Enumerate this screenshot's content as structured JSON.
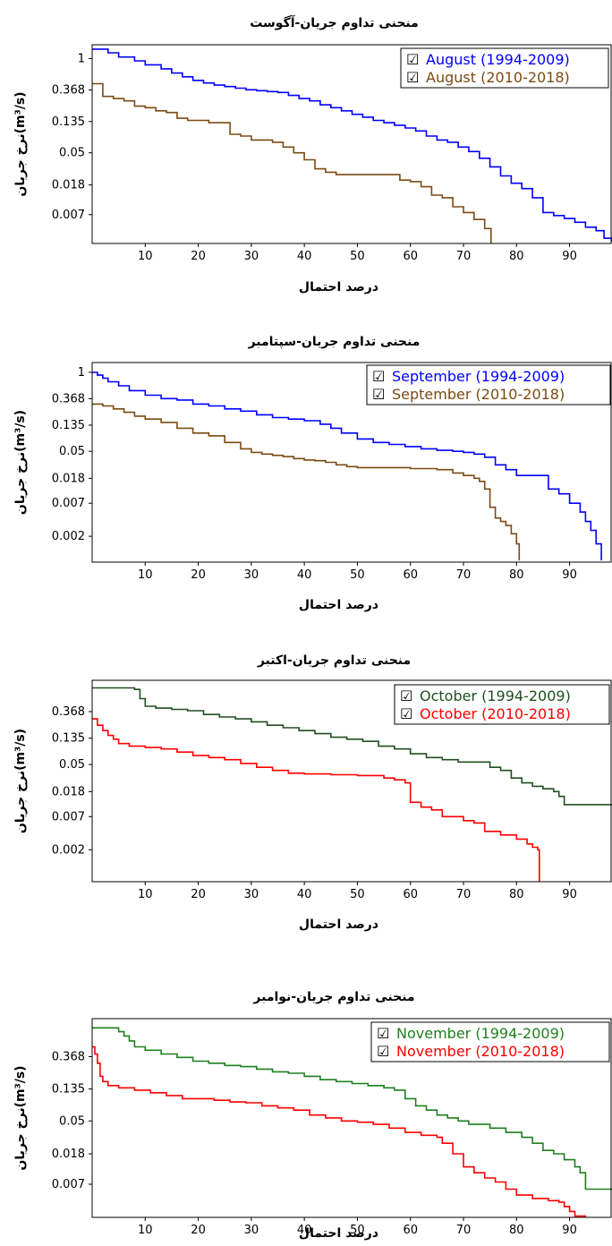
{
  "chart_data": [
    {
      "type": "line",
      "title": "منحنی تداوم جریان-آگوست",
      "xlabel": "درصد احتمال",
      "ylabel": "نرخ جریان(m³/s)",
      "y_scale": "log",
      "xlim": [
        0,
        98
      ],
      "ylim": [
        0.0028,
        1.55
      ],
      "x_ticks": [
        10,
        20,
        30,
        40,
        50,
        60,
        70,
        80,
        90
      ],
      "y_ticks": [
        1,
        0.368,
        0.135,
        0.05,
        0.018,
        0.007
      ],
      "y_tick_labels": [
        "1",
        "0.368",
        "0.135",
        "0.05",
        "0.018",
        "0.007"
      ],
      "legend_position": "top-right",
      "legend_checkbox_glyph": "☑",
      "series": [
        {
          "name": "August (1994-2009)",
          "color": "#0000ff",
          "x": [
            0,
            3,
            5,
            8,
            10,
            13,
            15,
            17,
            19,
            21,
            23,
            25,
            27,
            29,
            31,
            33,
            35,
            37,
            39,
            41,
            43,
            45,
            47,
            49,
            51,
            53,
            55,
            57,
            59,
            61,
            63,
            65,
            67,
            69,
            71,
            73,
            75,
            77,
            79,
            81,
            83,
            85,
            87,
            89,
            91,
            93,
            95,
            96.5,
            98
          ],
          "y": [
            1.35,
            1.2,
            1.05,
            0.93,
            0.82,
            0.72,
            0.63,
            0.56,
            0.5,
            0.46,
            0.43,
            0.41,
            0.39,
            0.37,
            0.36,
            0.35,
            0.34,
            0.31,
            0.28,
            0.26,
            0.23,
            0.21,
            0.19,
            0.17,
            0.155,
            0.14,
            0.13,
            0.12,
            0.11,
            0.1,
            0.085,
            0.075,
            0.07,
            0.06,
            0.052,
            0.042,
            0.032,
            0.024,
            0.019,
            0.016,
            0.012,
            0.0075,
            0.0068,
            0.0062,
            0.0055,
            0.0047,
            0.0042,
            0.0033,
            0.003
          ]
        },
        {
          "name": "August (2010-2018)",
          "color": "#7b4a12",
          "x": [
            0,
            2,
            4,
            6,
            8,
            10,
            12,
            14,
            16,
            18,
            20,
            22,
            24,
            26,
            28,
            30,
            32,
            34,
            36,
            38,
            40,
            42,
            44,
            46,
            48,
            50,
            52,
            54,
            56,
            58,
            60,
            62,
            64,
            66,
            68,
            70,
            72,
            74,
            75.2
          ],
          "y": [
            0.45,
            0.3,
            0.28,
            0.26,
            0.22,
            0.21,
            0.19,
            0.18,
            0.15,
            0.14,
            0.14,
            0.13,
            0.13,
            0.09,
            0.085,
            0.075,
            0.075,
            0.07,
            0.06,
            0.05,
            0.04,
            0.03,
            0.027,
            0.025,
            0.025,
            0.025,
            0.025,
            0.025,
            0.025,
            0.021,
            0.02,
            0.017,
            0.013,
            0.012,
            0.009,
            0.0075,
            0.006,
            0.0045,
            0.0028
          ]
        }
      ]
    },
    {
      "type": "line",
      "title": "منحنی تداوم جریان-سپتامبر",
      "xlabel": "درصد احتمال",
      "ylabel": "نرخ جریان(m³/s)",
      "y_scale": "log",
      "xlim": [
        0,
        98
      ],
      "ylim": [
        0.00075,
        1.45
      ],
      "x_ticks": [
        10,
        20,
        30,
        40,
        50,
        60,
        70,
        80,
        90
      ],
      "y_ticks": [
        1,
        0.368,
        0.135,
        0.05,
        0.018,
        0.007,
        0.002
      ],
      "y_tick_labels": [
        "1",
        "0.368",
        "0.135",
        "0.05",
        "0.018",
        "0.007",
        "0.002"
      ],
      "legend_position": "top-right",
      "legend_checkbox_glyph": "☑",
      "series": [
        {
          "name": "September (1994-2009)",
          "color": "#0000ff",
          "x": [
            0,
            1,
            2,
            3,
            5,
            7,
            10,
            13,
            16,
            19,
            22,
            25,
            28,
            31,
            34,
            37,
            40,
            43,
            45,
            47,
            50,
            53,
            56,
            59,
            62,
            65,
            68,
            70,
            72,
            74,
            76,
            78,
            80,
            82,
            84,
            86,
            88,
            90,
            92,
            93,
            94,
            95,
            96
          ],
          "y": [
            1.0,
            0.9,
            0.8,
            0.7,
            0.6,
            0.5,
            0.42,
            0.37,
            0.35,
            0.3,
            0.28,
            0.25,
            0.23,
            0.2,
            0.18,
            0.17,
            0.16,
            0.14,
            0.12,
            0.1,
            0.08,
            0.07,
            0.065,
            0.06,
            0.055,
            0.052,
            0.05,
            0.048,
            0.045,
            0.04,
            0.03,
            0.025,
            0.02,
            0.02,
            0.02,
            0.012,
            0.01,
            0.007,
            0.005,
            0.0035,
            0.0025,
            0.0015,
            0.0008
          ]
        },
        {
          "name": "September (2010-2018)",
          "color": "#7b4a12",
          "x": [
            0,
            2,
            4,
            6,
            8,
            10,
            13,
            16,
            19,
            22,
            25,
            28,
            30,
            32,
            34,
            36,
            38,
            40,
            42,
            44,
            46,
            48,
            50,
            55,
            60,
            65,
            68,
            70,
            72,
            73,
            74,
            75,
            76,
            77,
            78,
            79,
            80,
            80.5
          ],
          "y": [
            0.3,
            0.28,
            0.25,
            0.22,
            0.19,
            0.17,
            0.15,
            0.12,
            0.1,
            0.09,
            0.07,
            0.055,
            0.048,
            0.045,
            0.043,
            0.041,
            0.038,
            0.036,
            0.035,
            0.033,
            0.03,
            0.028,
            0.027,
            0.027,
            0.026,
            0.025,
            0.022,
            0.02,
            0.018,
            0.016,
            0.012,
            0.006,
            0.004,
            0.0035,
            0.003,
            0.0022,
            0.0015,
            0.0008
          ]
        }
      ]
    },
    {
      "type": "line",
      "title": "منحنی تداوم جریان-اکتبر",
      "xlabel": "درصد احتمال",
      "ylabel": "نرخ جریان(m³/s)",
      "y_scale": "log",
      "xlim": [
        0,
        98
      ],
      "ylim": [
        0.0006,
        1.2
      ],
      "x_ticks": [
        10,
        20,
        30,
        40,
        50,
        60,
        70,
        80,
        90
      ],
      "y_ticks": [
        0.368,
        0.135,
        0.05,
        0.018,
        0.007,
        0.002
      ],
      "y_tick_labels": [
        "0.368",
        "0.135",
        "0.05",
        "0.018",
        "0.007",
        "0.002"
      ],
      "legend_position": "top-right",
      "legend_checkbox_glyph": "☑",
      "series": [
        {
          "name": "October (1994-2009)",
          "color": "#1f4f1f",
          "x": [
            0,
            4,
            8,
            9,
            10,
            12,
            15,
            18,
            21,
            24,
            27,
            30,
            33,
            36,
            39,
            42,
            45,
            48,
            51,
            54,
            57,
            60,
            63,
            66,
            69,
            72,
            75,
            77,
            79,
            81,
            83,
            85,
            87,
            88,
            89,
            98
          ],
          "y": [
            0.9,
            0.9,
            0.85,
            0.6,
            0.45,
            0.42,
            0.4,
            0.38,
            0.33,
            0.3,
            0.28,
            0.25,
            0.22,
            0.2,
            0.18,
            0.16,
            0.14,
            0.13,
            0.12,
            0.1,
            0.09,
            0.075,
            0.065,
            0.06,
            0.055,
            0.055,
            0.045,
            0.04,
            0.03,
            0.025,
            0.022,
            0.02,
            0.018,
            0.015,
            0.011,
            0.011
          ]
        },
        {
          "name": "October (2010-2018)",
          "color": "#ff0000",
          "x": [
            0,
            1,
            2,
            3,
            4,
            5,
            7,
            10,
            13,
            16,
            19,
            22,
            25,
            28,
            31,
            34,
            37,
            40,
            45,
            50,
            55,
            57,
            59,
            60,
            62,
            64,
            66,
            68,
            70,
            72,
            74,
            77,
            80,
            82,
            83,
            84,
            84.3
          ],
          "y": [
            0.28,
            0.22,
            0.18,
            0.15,
            0.13,
            0.11,
            0.1,
            0.095,
            0.09,
            0.08,
            0.07,
            0.065,
            0.06,
            0.052,
            0.045,
            0.04,
            0.036,
            0.035,
            0.034,
            0.033,
            0.03,
            0.028,
            0.025,
            0.012,
            0.01,
            0.009,
            0.007,
            0.007,
            0.006,
            0.0055,
            0.004,
            0.0035,
            0.003,
            0.0025,
            0.0022,
            0.002,
            0.0006
          ]
        }
      ]
    },
    {
      "type": "line",
      "title": "منحنی تداوم جریان-نوامبر",
      "xlabel": "درصد احتمال",
      "ylabel": "نرخ جریان(m³/s)",
      "y_scale": "log",
      "xlim": [
        0,
        98
      ],
      "ylim": [
        0.0025,
        1.2
      ],
      "x_ticks": [
        10,
        20,
        30,
        40,
        50,
        60,
        70,
        80,
        90
      ],
      "y_ticks": [
        0.368,
        0.135,
        0.05,
        0.018,
        0.007
      ],
      "y_tick_labels": [
        "0.368",
        "0.135",
        "0.05",
        "0.018",
        "0.007"
      ],
      "legend_position": "top-right",
      "legend_checkbox_glyph": "☑",
      "series": [
        {
          "name": "November (1994-2009)",
          "color": "#1f7f1f",
          "x": [
            0,
            4,
            5,
            6,
            7,
            8,
            10,
            13,
            16,
            19,
            22,
            25,
            28,
            31,
            34,
            37,
            40,
            43,
            46,
            49,
            52,
            55,
            57,
            59,
            61,
            63,
            65,
            67,
            69,
            71,
            75,
            78,
            81,
            83,
            85,
            87,
            89,
            91,
            92,
            93,
            98
          ],
          "y": [
            0.9,
            0.9,
            0.8,
            0.7,
            0.6,
            0.5,
            0.45,
            0.4,
            0.36,
            0.32,
            0.3,
            0.28,
            0.27,
            0.25,
            0.23,
            0.22,
            0.2,
            0.18,
            0.17,
            0.16,
            0.15,
            0.14,
            0.13,
            0.1,
            0.08,
            0.07,
            0.06,
            0.055,
            0.05,
            0.045,
            0.04,
            0.035,
            0.03,
            0.025,
            0.02,
            0.018,
            0.015,
            0.012,
            0.01,
            0.006,
            0.006
          ]
        },
        {
          "name": "November (2010-2018)",
          "color": "#ff0000",
          "x": [
            0,
            0.5,
            1,
            1.5,
            2,
            3,
            5,
            8,
            11,
            14,
            17,
            20,
            23,
            26,
            29,
            32,
            35,
            38,
            41,
            44,
            47,
            50,
            53,
            56,
            59,
            62,
            65,
            66,
            68,
            70,
            72,
            74,
            76,
            78,
            80,
            83,
            86,
            88,
            89,
            90,
            91,
            93
          ],
          "y": [
            0.5,
            0.4,
            0.3,
            0.2,
            0.17,
            0.15,
            0.14,
            0.13,
            0.12,
            0.11,
            0.1,
            0.1,
            0.095,
            0.09,
            0.088,
            0.08,
            0.075,
            0.07,
            0.06,
            0.055,
            0.05,
            0.048,
            0.045,
            0.04,
            0.035,
            0.032,
            0.03,
            0.025,
            0.018,
            0.012,
            0.01,
            0.0085,
            0.0075,
            0.006,
            0.005,
            0.0045,
            0.0042,
            0.004,
            0.0035,
            0.003,
            0.0026,
            0.0025
          ]
        }
      ]
    }
  ]
}
